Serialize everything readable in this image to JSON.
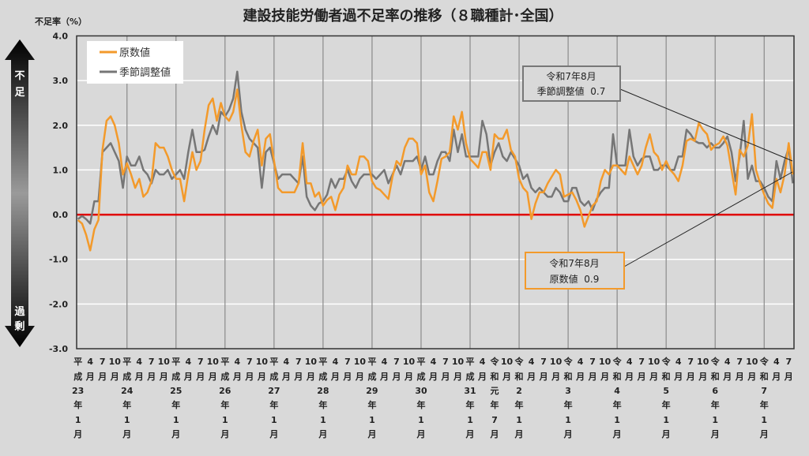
{
  "chart_data": {
    "type": "line",
    "title": "建設技能労働者過不足率の推移（８職種計･全国）",
    "ylabel": "不足率（%）",
    "ylim": [
      -3.0,
      4.0
    ],
    "yticks": [
      "4.0",
      "3.0",
      "2.0",
      "1.0",
      "0.0",
      "-1.0",
      "-2.0",
      "-3.0"
    ],
    "x_start": "2011-01",
    "x_end": "2025-08",
    "x_tick_labels": [
      [
        "平",
        "成",
        "23",
        "年",
        "1",
        "月"
      ],
      [
        "4",
        "月"
      ],
      [
        "7",
        "月"
      ],
      [
        "10",
        "月"
      ],
      [
        "平",
        "成",
        "24",
        "年",
        "1",
        "月"
      ],
      [
        "4",
        "月"
      ],
      [
        "7",
        "月"
      ],
      [
        "10",
        "月"
      ],
      [
        "平",
        "成",
        "25",
        "年",
        "1",
        "月"
      ],
      [
        "4",
        "月"
      ],
      [
        "7",
        "月"
      ],
      [
        "10",
        "月"
      ],
      [
        "平",
        "成",
        "26",
        "年",
        "1",
        "月"
      ],
      [
        "4",
        "月"
      ],
      [
        "7",
        "月"
      ],
      [
        "10",
        "月"
      ],
      [
        "平",
        "成",
        "27",
        "年",
        "1",
        "月"
      ],
      [
        "4",
        "月"
      ],
      [
        "7",
        "月"
      ],
      [
        "10",
        "月"
      ],
      [
        "平",
        "成",
        "28",
        "年",
        "1",
        "月"
      ],
      [
        "4",
        "月"
      ],
      [
        "7",
        "月"
      ],
      [
        "10",
        "月"
      ],
      [
        "平",
        "成",
        "29",
        "年",
        "1",
        "月"
      ],
      [
        "4",
        "月"
      ],
      [
        "7",
        "月"
      ],
      [
        "10",
        "月"
      ],
      [
        "平",
        "成",
        "30",
        "年",
        "1",
        "月"
      ],
      [
        "4",
        "月"
      ],
      [
        "7",
        "月"
      ],
      [
        "10",
        "月"
      ],
      [
        "平",
        "成",
        "31",
        "年",
        "1",
        "月"
      ],
      [
        "4",
        "月"
      ],
      [
        "令",
        "和",
        "元",
        "年",
        "7",
        "月"
      ],
      [
        "10",
        "月"
      ],
      [
        "令",
        "和",
        "2",
        "年",
        "1",
        "月"
      ],
      [
        "4",
        "月"
      ],
      [
        "7",
        "月"
      ],
      [
        "10",
        "月"
      ],
      [
        "令",
        "和",
        "3",
        "年",
        "1",
        "月"
      ],
      [
        "4",
        "月"
      ],
      [
        "7",
        "月"
      ],
      [
        "10",
        "月"
      ],
      [
        "令",
        "和",
        "4",
        "年",
        "1",
        "月"
      ],
      [
        "4",
        "月"
      ],
      [
        "7",
        "月"
      ],
      [
        "10",
        "月"
      ],
      [
        "令",
        "和",
        "5",
        "年",
        "1",
        "月"
      ],
      [
        "4",
        "月"
      ],
      [
        "7",
        "月"
      ],
      [
        "10",
        "月"
      ],
      [
        "令",
        "和",
        "6",
        "年",
        "1",
        "月"
      ],
      [
        "4",
        "月"
      ],
      [
        "7",
        "月"
      ],
      [
        "10",
        "月"
      ],
      [
        "令",
        "和",
        "7",
        "年",
        "1",
        "月"
      ],
      [
        "4",
        "月"
      ],
      [
        "7",
        "月"
      ]
    ],
    "reference_line": {
      "value": 0.0,
      "color": "#e00000"
    },
    "grid": true,
    "legend": "top-left",
    "series": [
      {
        "name": "原数値",
        "color": "#f39a2b",
        "values": [
          -0.12,
          -0.2,
          -0.45,
          -0.8,
          -0.33,
          -0.12,
          1.45,
          2.1,
          2.2,
          2.0,
          1.6,
          0.9,
          1.15,
          0.9,
          0.6,
          0.8,
          0.4,
          0.5,
          0.75,
          1.6,
          1.5,
          1.5,
          1.3,
          1.0,
          0.8,
          0.8,
          0.3,
          0.9,
          1.4,
          1.0,
          1.2,
          1.9,
          2.45,
          2.6,
          2.1,
          2.5,
          2.2,
          2.1,
          2.3,
          2.8,
          2.0,
          1.4,
          1.3,
          1.65,
          1.9,
          1.1,
          1.7,
          1.8,
          1.2,
          0.6,
          0.5,
          0.5,
          0.5,
          0.5,
          0.7,
          1.6,
          0.7,
          0.7,
          0.4,
          0.5,
          0.2,
          0.33,
          0.4,
          0.1,
          0.45,
          0.6,
          1.1,
          0.9,
          0.9,
          1.3,
          1.3,
          1.2,
          0.75,
          0.6,
          0.55,
          0.45,
          0.35,
          0.85,
          1.2,
          1.1,
          1.5,
          1.7,
          1.7,
          1.6,
          0.9,
          1.1,
          0.5,
          0.3,
          0.75,
          1.25,
          1.3,
          1.4,
          2.2,
          1.9,
          2.3,
          1.6,
          1.25,
          1.15,
          1.05,
          1.4,
          1.4,
          1.0,
          1.8,
          1.7,
          1.7,
          1.9,
          1.45,
          1.3,
          0.8,
          0.6,
          0.5,
          -0.1,
          0.25,
          0.5,
          0.5,
          0.7,
          0.85,
          1.0,
          0.9,
          0.4,
          0.45,
          0.5,
          0.33,
          0.1,
          -0.27,
          -0.03,
          0.2,
          0.3,
          0.75,
          1.0,
          0.9,
          1.1,
          1.1,
          1.0,
          0.9,
          1.3,
          1.1,
          0.9,
          1.1,
          1.5,
          1.8,
          1.4,
          1.3,
          1.0,
          1.2,
          1.0,
          0.9,
          0.75,
          1.1,
          1.65,
          1.7,
          1.65,
          2.05,
          1.9,
          1.8,
          1.45,
          1.55,
          1.6,
          1.75,
          1.55,
          1.0,
          0.45,
          1.45,
          1.3,
          1.55,
          2.25,
          1.0,
          0.7,
          0.45,
          0.25,
          0.15,
          0.8,
          0.5,
          0.9,
          1.6,
          0.9
        ]
      },
      {
        "name": "季節調整値",
        "color": "#767676",
        "values": [
          -0.1,
          -0.03,
          -0.1,
          -0.2,
          0.3,
          0.3,
          1.4,
          1.5,
          1.6,
          1.4,
          1.2,
          0.6,
          1.3,
          1.1,
          1.1,
          1.3,
          1.0,
          0.9,
          0.7,
          1.0,
          0.9,
          0.9,
          1.0,
          0.8,
          0.9,
          1.0,
          0.8,
          1.4,
          1.9,
          1.4,
          1.4,
          1.45,
          1.75,
          2.0,
          1.8,
          2.3,
          2.2,
          2.35,
          2.6,
          3.2,
          2.3,
          1.9,
          1.7,
          1.6,
          1.5,
          0.6,
          1.4,
          1.5,
          1.15,
          0.8,
          0.9,
          0.9,
          0.9,
          0.8,
          0.7,
          1.3,
          0.4,
          0.2,
          0.1,
          0.25,
          0.3,
          0.45,
          0.8,
          0.6,
          0.8,
          0.8,
          1.0,
          0.75,
          0.6,
          0.8,
          0.9,
          0.9,
          0.9,
          0.8,
          0.9,
          1.0,
          0.7,
          0.9,
          1.1,
          0.9,
          1.2,
          1.2,
          1.2,
          1.3,
          1.0,
          1.3,
          0.9,
          0.9,
          1.2,
          1.4,
          1.4,
          1.2,
          1.9,
          1.4,
          1.8,
          1.3,
          1.3,
          1.3,
          1.3,
          2.1,
          1.8,
          1.1,
          1.4,
          1.6,
          1.3,
          1.2,
          1.4,
          1.25,
          1.1,
          0.8,
          0.9,
          0.6,
          0.5,
          0.6,
          0.5,
          0.4,
          0.4,
          0.6,
          0.5,
          0.3,
          0.3,
          0.6,
          0.6,
          0.3,
          0.2,
          0.3,
          0.1,
          0.35,
          0.5,
          0.6,
          0.6,
          1.8,
          1.1,
          1.1,
          1.1,
          1.9,
          1.3,
          1.1,
          1.25,
          1.3,
          1.3,
          1.0,
          1.0,
          1.1,
          1.1,
          1.0,
          1.0,
          1.3,
          1.3,
          1.9,
          1.8,
          1.65,
          1.6,
          1.6,
          1.5,
          1.6,
          1.5,
          1.5,
          1.6,
          1.75,
          1.4,
          0.75,
          1.3,
          2.1,
          0.8,
          1.1,
          0.75,
          0.75,
          0.6,
          0.4,
          0.3,
          1.2,
          0.8,
          1.2,
          1.5,
          0.7
        ]
      }
    ],
    "annotations": {
      "seasonal": {
        "line1": "令和7年8月",
        "line2": "季節調整値  0.7"
      },
      "raw": {
        "line1": "令和7年8月",
        "line2": "原数値  0.9"
      }
    },
    "side_arrow": {
      "top": [
        "不",
        "足"
      ],
      "bottom": [
        "過",
        "剰"
      ]
    }
  }
}
